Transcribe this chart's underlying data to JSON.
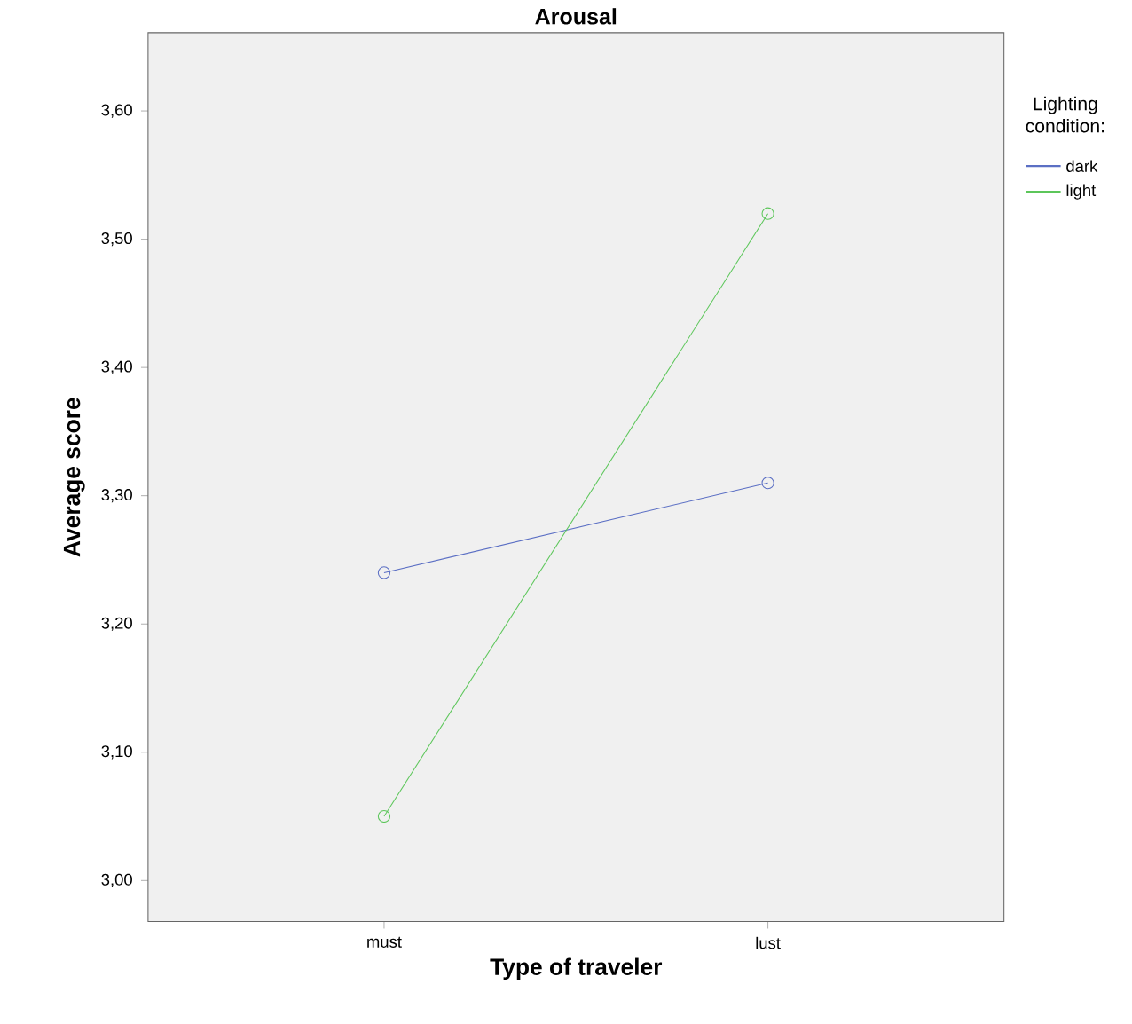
{
  "chart_data": {
    "type": "line",
    "title": "Arousal",
    "xlabel": "Type of traveler",
    "ylabel": "Average score",
    "legend_title": "Lighting condition:",
    "categories": [
      "must",
      "lust"
    ],
    "series": [
      {
        "name": "dark",
        "color": "#5b6fc4",
        "values": [
          3.24,
          3.31
        ]
      },
      {
        "name": "light",
        "color": "#5cc65a",
        "values": [
          3.05,
          3.52
        ]
      }
    ],
    "ylim": [
      2.968,
      3.661
    ],
    "yticks": [
      {
        "value": 3.0,
        "label": "3,00"
      },
      {
        "value": 3.1,
        "label": "3,10"
      },
      {
        "value": 3.2,
        "label": "3,20"
      },
      {
        "value": 3.3,
        "label": "3,30"
      },
      {
        "value": 3.4,
        "label": "3,40"
      },
      {
        "value": 3.5,
        "label": "3,50"
      },
      {
        "value": 3.6,
        "label": "3,60"
      }
    ],
    "legend": "top right",
    "marker": "circle",
    "line_style": "solid",
    "grid": false
  }
}
